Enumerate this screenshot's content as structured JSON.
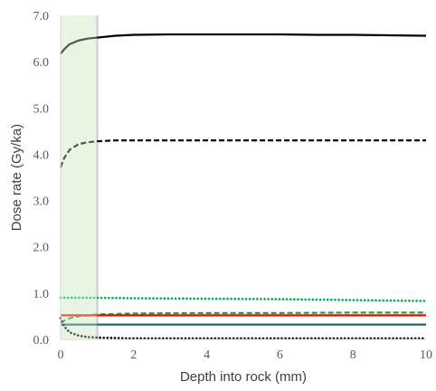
{
  "chart_data": {
    "type": "line",
    "title": "",
    "xlabel": "Depth into rock (mm)",
    "ylabel": "Dose rate (Gy/ka)",
    "xlim": [
      0,
      10
    ],
    "ylim": [
      0,
      7
    ],
    "xticks": [
      "0",
      "2",
      "4",
      "6",
      "8",
      "10"
    ],
    "yticks": [
      "0.0",
      "1.0",
      "2.0",
      "3.0",
      "4.0",
      "5.0",
      "6.0",
      "7.0"
    ],
    "grid": false,
    "legend": "none",
    "shaded_region": {
      "x": [
        0,
        1
      ],
      "color": "#e8f5e3",
      "edge_color": "#cccccc"
    },
    "series": [
      {
        "style": "solid",
        "color": "#000000",
        "x": [
          0,
          0.1,
          0.25,
          0.5,
          0.75,
          1,
          1.5,
          2,
          3,
          4,
          5,
          6,
          7,
          8,
          9,
          10
        ],
        "y": [
          6.17,
          6.27,
          6.38,
          6.46,
          6.5,
          6.52,
          6.56,
          6.58,
          6.59,
          6.59,
          6.59,
          6.59,
          6.58,
          6.58,
          6.57,
          6.56
        ]
      },
      {
        "style": "dashed",
        "color": "#000000",
        "x": [
          0,
          0.1,
          0.25,
          0.5,
          0.75,
          1,
          1.5,
          2,
          4,
          6,
          8,
          10
        ],
        "y": [
          3.72,
          3.92,
          4.1,
          4.22,
          4.26,
          4.28,
          4.3,
          4.3,
          4.3,
          4.3,
          4.3,
          4.3
        ]
      },
      {
        "style": "dotted",
        "color": "#00b050",
        "x": [
          0,
          1,
          2,
          4,
          6,
          8,
          10
        ],
        "y": [
          0.9,
          0.9,
          0.89,
          0.88,
          0.87,
          0.85,
          0.83
        ]
      },
      {
        "style": "dashed",
        "color": "#339933",
        "x": [
          0,
          0.25,
          0.5,
          1,
          2,
          4,
          6,
          8,
          10
        ],
        "y": [
          0.37,
          0.46,
          0.5,
          0.54,
          0.56,
          0.57,
          0.57,
          0.58,
          0.58
        ]
      },
      {
        "style": "solid",
        "color": "#ff0000",
        "x": [
          0,
          10
        ],
        "y": [
          0.52,
          0.52
        ]
      },
      {
        "style": "solid",
        "color": "#1f5f7a",
        "x": [
          0,
          10
        ],
        "y": [
          0.32,
          0.32
        ]
      },
      {
        "style": "dotted",
        "color": "#000000",
        "x": [
          0,
          0.1,
          0.25,
          0.5,
          0.75,
          1,
          1.5,
          2,
          4,
          6,
          8,
          10
        ],
        "y": [
          0.46,
          0.28,
          0.15,
          0.08,
          0.05,
          0.04,
          0.03,
          0.02,
          0.02,
          0.02,
          0.02,
          0.02
        ]
      }
    ]
  }
}
